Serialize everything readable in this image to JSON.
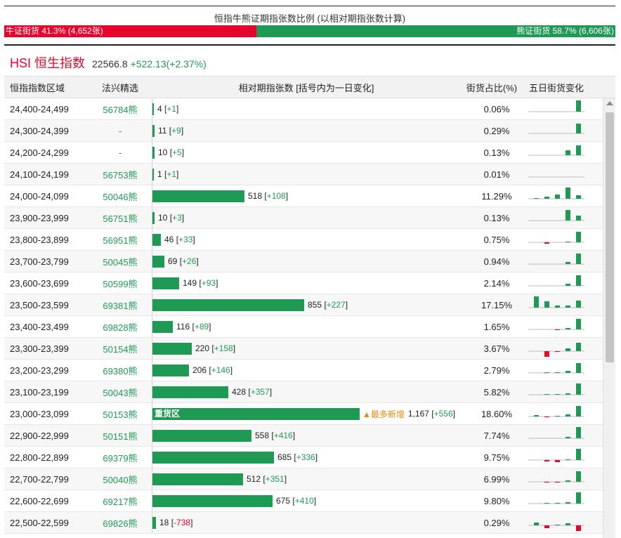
{
  "ratio": {
    "title": "恒指牛熊证期指张数比例 (以相对期指张数计算)",
    "bull_label": "牛证街货 41.3% (4,652张)",
    "bear_label": "熊证街货 58.7% (6,606张)",
    "bull_fraction": 0.413
  },
  "hsi": {
    "name": "HSI 恒生指数",
    "value": "22566.8",
    "change": "+522.13(+2.37%)"
  },
  "table": {
    "headers": {
      "range": "恒指指数区域",
      "code": "法兴精选",
      "contracts": "相对期指张数 [括号内为一日变化]",
      "share": "街货占比(%)",
      "trend": "五日街货变化"
    },
    "hot_zone_label": "重货区",
    "hot_tag": "▲最多新增",
    "max_count": 1167,
    "rows": [
      {
        "range": "24,400-24,499",
        "code": "56784熊",
        "count": 4,
        "count_text": "4",
        "change": "+1",
        "share": "0.06%",
        "spark": [
          0,
          0,
          0,
          0,
          0.16
        ]
      },
      {
        "range": "24,300-24,399",
        "code": "-",
        "count": 11,
        "count_text": "11",
        "change": "+9",
        "share": "0.29%",
        "spark": [
          0,
          0,
          0,
          0,
          0.14
        ]
      },
      {
        "range": "24,200-24,299",
        "code": "-",
        "count": 10,
        "count_text": "10",
        "change": "+5",
        "share": "0.13%",
        "spark": [
          0,
          0,
          0,
          0.07,
          0.14
        ]
      },
      {
        "range": "24,100-24,199",
        "code": "56753熊",
        "count": 1,
        "count_text": "1",
        "change": "+1",
        "share": "0.01%",
        "spark": [
          0,
          0,
          0,
          0,
          0
        ]
      },
      {
        "range": "24,000-24,099",
        "code": "50046熊",
        "count": 518,
        "count_text": "518",
        "change": "+108",
        "share": "11.29%",
        "spark": [
          0.01,
          0.03,
          0.06,
          0.16,
          0.05
        ]
      },
      {
        "range": "23,900-23,999",
        "code": "56751熊",
        "count": 10,
        "count_text": "10",
        "change": "+3",
        "share": "0.13%",
        "spark": [
          0,
          0,
          0,
          0.15,
          0.07
        ]
      },
      {
        "range": "23,800-23,899",
        "code": "56951熊",
        "count": 46,
        "count_text": "46",
        "change": "+33",
        "share": "0.75%",
        "spark": [
          0,
          -0.02,
          0,
          0.01,
          0.15
        ]
      },
      {
        "range": "23,700-23,799",
        "code": "50045熊",
        "count": 69,
        "count_text": "69",
        "change": "+26",
        "share": "0.94%",
        "spark": [
          0,
          0,
          0,
          0.03,
          0.15
        ]
      },
      {
        "range": "23,600-23,699",
        "code": "50599熊",
        "count": 149,
        "count_text": "149",
        "change": "+93",
        "share": "2.14%",
        "spark": [
          0,
          0,
          0,
          0.03,
          0.15
        ]
      },
      {
        "range": "23,500-23,599",
        "code": "69381熊",
        "count": 855,
        "count_text": "855",
        "change": "+227",
        "share": "17.15%",
        "spark": [
          0.16,
          0.09,
          0.03,
          0.03,
          0.1
        ]
      },
      {
        "range": "23,400-23,499",
        "code": "69828熊",
        "count": 116,
        "count_text": "116",
        "change": "+89",
        "share": "1.65%",
        "spark": [
          0,
          0,
          -0.01,
          0.02,
          0.15
        ]
      },
      {
        "range": "23,300-23,399",
        "code": "50154熊",
        "count": 220,
        "count_text": "220",
        "change": "+158",
        "share": "3.67%",
        "spark": [
          0,
          -0.08,
          -0.01,
          0.04,
          0.12
        ]
      },
      {
        "range": "23,200-23,299",
        "code": "69380熊",
        "count": 206,
        "count_text": "206",
        "change": "+146",
        "share": "2.79%",
        "spark": [
          0,
          0.01,
          0.01,
          0.03,
          0.14
        ]
      },
      {
        "range": "23,100-23,199",
        "code": "50043熊",
        "count": 428,
        "count_text": "428",
        "change": "+357",
        "share": "5.82%",
        "spark": [
          0,
          0.01,
          0.01,
          0.02,
          0.16
        ]
      },
      {
        "range": "23,000-23,099",
        "code": "50153熊",
        "count": 1167,
        "count_text": "1,167",
        "change": "+556",
        "share": "18.60%",
        "hot": true,
        "spark": [
          0.02,
          -0.01,
          0.01,
          0.03,
          0.15
        ]
      },
      {
        "range": "22,900-22,999",
        "code": "50151熊",
        "count": 558,
        "count_text": "558",
        "change": "+416",
        "share": "7.74%",
        "spark": [
          0,
          0,
          0,
          0.02,
          0.16
        ]
      },
      {
        "range": "22,800-22,899",
        "code": "69379熊",
        "count": 685,
        "count_text": "685",
        "change": "+336",
        "share": "9.75%",
        "spark": [
          0,
          -0.02,
          -0.03,
          0.01,
          0.16
        ]
      },
      {
        "range": "22,700-22,799",
        "code": "50040熊",
        "count": 512,
        "count_text": "512",
        "change": "+351",
        "share": "6.99%",
        "spark": [
          0,
          -0.01,
          -0.01,
          0.02,
          0.15
        ]
      },
      {
        "range": "22,600-22,699",
        "code": "69217熊",
        "count": 675,
        "count_text": "675",
        "change": "+410",
        "share": "9.80%",
        "spark": [
          0,
          0.01,
          0.01,
          0.02,
          0.16
        ]
      },
      {
        "range": "22,500-22,599",
        "code": "69826熊",
        "count": 18,
        "count_text": "18",
        "change": "-738",
        "share": "0.29%",
        "spark": [
          0.04,
          -0.04,
          0.01,
          0.03,
          -0.16
        ]
      }
    ]
  },
  "colors": {
    "bull": "#e8052c",
    "bear": "#1e9a55",
    "hot": "#e8890c"
  }
}
